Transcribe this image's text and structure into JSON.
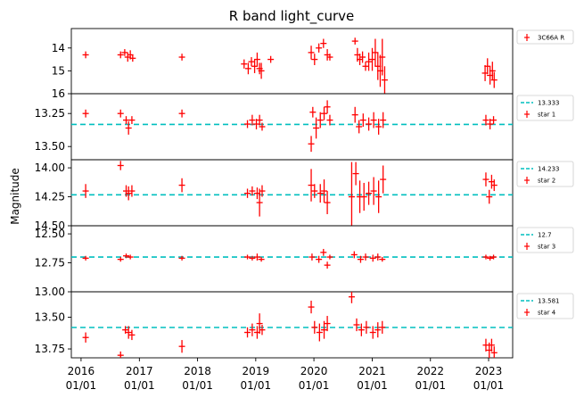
{
  "chart_data": {
    "type": "scatter",
    "title": "R band light_curve",
    "ylabel": "Magnitude",
    "xlabel": "",
    "y_inverted": true,
    "marker": "+ with error bars",
    "series_color": "#ff0000",
    "reference_color": "#00bfbf",
    "x_range": [
      "2015-11-01",
      "2023-06-01"
    ],
    "x_ticks": [
      {
        "x": "2016-01-01",
        "label_year": "2016",
        "label_day": "01/01"
      },
      {
        "x": "2017-01-01",
        "label_year": "2017",
        "label_day": "01/01"
      },
      {
        "x": "2018-01-01",
        "label_year": "2018",
        "label_day": "01/01"
      },
      {
        "x": "2019-01-01",
        "label_year": "2019",
        "label_day": "01/01"
      },
      {
        "x": "2020-01-01",
        "label_year": "2020",
        "label_day": "01/01"
      },
      {
        "x": "2021-01-01",
        "label_year": "2021",
        "label_day": "01/01"
      },
      {
        "x": "2022-01-01",
        "label_year": "2022",
        "label_day": "01/01"
      },
      {
        "x": "2023-01-01",
        "label_year": "2023",
        "label_day": "01/01"
      }
    ],
    "panels": [
      {
        "name": "3C66A R",
        "legend_series": "3C66A R",
        "reference": null,
        "reference_label": "",
        "ylim": [
          13.15,
          16.0
        ],
        "yticks": [
          14,
          15,
          16
        ],
        "yticklabels": [
          "14",
          "15",
          "16"
        ],
        "points": [
          {
            "x": "2016-01-30",
            "y": 14.3,
            "err": 0.15
          },
          {
            "x": "2016-09-05",
            "y": 14.3,
            "err": 0.15
          },
          {
            "x": "2016-10-01",
            "y": 14.2,
            "err": 0.15
          },
          {
            "x": "2016-10-20",
            "y": 14.4,
            "err": 0.2
          },
          {
            "x": "2016-11-05",
            "y": 14.3,
            "err": 0.2
          },
          {
            "x": "2016-11-20",
            "y": 14.45,
            "err": 0.15
          },
          {
            "x": "2017-09-25",
            "y": 14.4,
            "err": 0.15
          },
          {
            "x": "2018-10-20",
            "y": 14.7,
            "err": 0.2
          },
          {
            "x": "2018-11-15",
            "y": 14.9,
            "err": 0.25
          },
          {
            "x": "2018-12-05",
            "y": 14.6,
            "err": 0.2
          },
          {
            "x": "2018-12-25",
            "y": 14.8,
            "err": 0.3
          },
          {
            "x": "2019-01-10",
            "y": 14.5,
            "err": 0.3
          },
          {
            "x": "2019-01-25",
            "y": 14.9,
            "err": 0.25
          },
          {
            "x": "2019-02-05",
            "y": 15.0,
            "err": 0.35
          },
          {
            "x": "2019-04-05",
            "y": 14.5,
            "err": 0.15
          },
          {
            "x": "2019-12-15",
            "y": 14.2,
            "err": 0.3
          },
          {
            "x": "2020-01-05",
            "y": 14.5,
            "err": 0.25
          },
          {
            "x": "2020-02-01",
            "y": 14.0,
            "err": 0.2
          },
          {
            "x": "2020-03-01",
            "y": 13.8,
            "err": 0.2
          },
          {
            "x": "2020-03-25",
            "y": 14.3,
            "err": 0.25
          },
          {
            "x": "2020-04-10",
            "y": 14.4,
            "err": 0.15
          },
          {
            "x": "2020-09-15",
            "y": 13.7,
            "err": 0.15
          },
          {
            "x": "2020-09-30",
            "y": 14.3,
            "err": 0.3
          },
          {
            "x": "2020-10-15",
            "y": 14.5,
            "err": 0.25
          },
          {
            "x": "2020-11-01",
            "y": 14.4,
            "err": 0.25
          },
          {
            "x": "2020-11-20",
            "y": 14.8,
            "err": 0.2
          },
          {
            "x": "2020-12-10",
            "y": 14.6,
            "err": 0.4
          },
          {
            "x": "2021-01-01",
            "y": 14.5,
            "err": 0.5
          },
          {
            "x": "2021-01-20",
            "y": 14.2,
            "err": 0.6
          },
          {
            "x": "2021-02-05",
            "y": 14.8,
            "err": 0.6
          },
          {
            "x": "2021-02-20",
            "y": 15.0,
            "err": 0.7
          },
          {
            "x": "2021-03-05",
            "y": 14.4,
            "err": 0.8
          },
          {
            "x": "2021-03-20",
            "y": 15.4,
            "err": 0.6
          },
          {
            "x": "2022-12-10",
            "y": 15.1,
            "err": 0.35
          },
          {
            "x": "2022-12-25",
            "y": 14.8,
            "err": 0.35
          },
          {
            "x": "2023-01-10",
            "y": 15.2,
            "err": 0.4
          },
          {
            "x": "2023-01-25",
            "y": 15.0,
            "err": 0.4
          },
          {
            "x": "2023-02-05",
            "y": 15.4,
            "err": 0.35
          }
        ]
      },
      {
        "name": "star 1",
        "legend_series": "star 1",
        "reference": 13.333,
        "reference_label": "13.333",
        "ylim": [
          13.1,
          13.6
        ],
        "yticks": [
          13.25,
          13.5
        ],
        "yticklabels": [
          "13.25",
          "13.50"
        ],
        "points": [
          {
            "x": "2016-01-30",
            "y": 13.25,
            "err": 0.03
          },
          {
            "x": "2016-09-05",
            "y": 13.25,
            "err": 0.03
          },
          {
            "x": "2016-10-10",
            "y": 13.3,
            "err": 0.03
          },
          {
            "x": "2016-10-25",
            "y": 13.36,
            "err": 0.05
          },
          {
            "x": "2016-11-15",
            "y": 13.3,
            "err": 0.03
          },
          {
            "x": "2017-09-25",
            "y": 13.25,
            "err": 0.03
          },
          {
            "x": "2018-11-10",
            "y": 13.33,
            "err": 0.03
          },
          {
            "x": "2018-12-10",
            "y": 13.3,
            "err": 0.04
          },
          {
            "x": "2019-01-05",
            "y": 13.33,
            "err": 0.04
          },
          {
            "x": "2019-01-25",
            "y": 13.3,
            "err": 0.04
          },
          {
            "x": "2019-02-10",
            "y": 13.35,
            "err": 0.03
          },
          {
            "x": "2019-12-15",
            "y": 13.48,
            "err": 0.06
          },
          {
            "x": "2019-12-25",
            "y": 13.24,
            "err": 0.04
          },
          {
            "x": "2020-01-15",
            "y": 13.36,
            "err": 0.08
          },
          {
            "x": "2020-02-10",
            "y": 13.3,
            "err": 0.06
          },
          {
            "x": "2020-03-05",
            "y": 13.25,
            "err": 0.05
          },
          {
            "x": "2020-03-25",
            "y": 13.2,
            "err": 0.05
          },
          {
            "x": "2020-04-10",
            "y": 13.3,
            "err": 0.04
          },
          {
            "x": "2020-09-15",
            "y": 13.26,
            "err": 0.06
          },
          {
            "x": "2020-10-10",
            "y": 13.35,
            "err": 0.05
          },
          {
            "x": "2020-11-05",
            "y": 13.3,
            "err": 0.05
          },
          {
            "x": "2020-12-10",
            "y": 13.33,
            "err": 0.05
          },
          {
            "x": "2021-01-10",
            "y": 13.3,
            "err": 0.06
          },
          {
            "x": "2021-02-10",
            "y": 13.35,
            "err": 0.06
          },
          {
            "x": "2021-03-10",
            "y": 13.3,
            "err": 0.06
          },
          {
            "x": "2022-12-15",
            "y": 13.3,
            "err": 0.04
          },
          {
            "x": "2023-01-10",
            "y": 13.33,
            "err": 0.04
          },
          {
            "x": "2023-02-01",
            "y": 13.3,
            "err": 0.03
          }
        ]
      },
      {
        "name": "star 2",
        "legend_series": "star 2",
        "reference": 14.233,
        "reference_label": "14.233",
        "ylim": [
          13.93,
          14.5
        ],
        "yticks": [
          14.0,
          14.25,
          14.5
        ],
        "yticklabels": [
          "14.00",
          "14.25",
          "14.50"
        ],
        "points": [
          {
            "x": "2016-01-30",
            "y": 14.2,
            "err": 0.06
          },
          {
            "x": "2016-09-05",
            "y": 13.98,
            "err": 0.04
          },
          {
            "x": "2016-10-10",
            "y": 14.2,
            "err": 0.05
          },
          {
            "x": "2016-10-25",
            "y": 14.22,
            "err": 0.06
          },
          {
            "x": "2016-11-15",
            "y": 14.2,
            "err": 0.05
          },
          {
            "x": "2017-09-25",
            "y": 14.15,
            "err": 0.06
          },
          {
            "x": "2018-11-10",
            "y": 14.22,
            "err": 0.04
          },
          {
            "x": "2018-12-10",
            "y": 14.2,
            "err": 0.04
          },
          {
            "x": "2019-01-10",
            "y": 14.22,
            "err": 0.05
          },
          {
            "x": "2019-01-25",
            "y": 14.3,
            "err": 0.12
          },
          {
            "x": "2019-02-10",
            "y": 14.2,
            "err": 0.05
          },
          {
            "x": "2019-12-15",
            "y": 14.15,
            "err": 0.14
          },
          {
            "x": "2020-01-05",
            "y": 14.2,
            "err": 0.06
          },
          {
            "x": "2020-02-10",
            "y": 14.22,
            "err": 0.08
          },
          {
            "x": "2020-03-05",
            "y": 14.2,
            "err": 0.1
          },
          {
            "x": "2020-03-25",
            "y": 14.3,
            "err": 0.1
          },
          {
            "x": "2020-08-25",
            "y": 14.25,
            "err": 0.3
          },
          {
            "x": "2020-09-20",
            "y": 14.05,
            "err": 0.1
          },
          {
            "x": "2020-10-15",
            "y": 14.25,
            "err": 0.14
          },
          {
            "x": "2020-11-10",
            "y": 14.25,
            "err": 0.12
          },
          {
            "x": "2020-12-10",
            "y": 14.22,
            "err": 0.1
          },
          {
            "x": "2021-01-10",
            "y": 14.2,
            "err": 0.12
          },
          {
            "x": "2021-02-10",
            "y": 14.25,
            "err": 0.14
          },
          {
            "x": "2021-03-10",
            "y": 14.1,
            "err": 0.12
          },
          {
            "x": "2022-12-15",
            "y": 14.1,
            "err": 0.06
          },
          {
            "x": "2023-01-05",
            "y": 14.25,
            "err": 0.06
          },
          {
            "x": "2023-01-20",
            "y": 14.12,
            "err": 0.06
          },
          {
            "x": "2023-02-05",
            "y": 14.15,
            "err": 0.05
          }
        ]
      },
      {
        "name": "star 3",
        "legend_series": "star 3",
        "reference": 12.7,
        "reference_label": "12.7",
        "ylim": [
          12.43,
          13.0
        ],
        "yticks": [
          12.5,
          12.75,
          13.0
        ],
        "yticklabels": [
          "12.50",
          "12.75",
          "13.00"
        ],
        "points": [
          {
            "x": "2016-01-30",
            "y": 12.71,
            "err": 0.02
          },
          {
            "x": "2016-09-05",
            "y": 12.72,
            "err": 0.02
          },
          {
            "x": "2016-10-10",
            "y": 12.69,
            "err": 0.02
          },
          {
            "x": "2016-11-05",
            "y": 12.7,
            "err": 0.02
          },
          {
            "x": "2017-09-25",
            "y": 12.71,
            "err": 0.02
          },
          {
            "x": "2018-11-10",
            "y": 12.7,
            "err": 0.02
          },
          {
            "x": "2018-12-10",
            "y": 12.71,
            "err": 0.02
          },
          {
            "x": "2019-01-10",
            "y": 12.7,
            "err": 0.03
          },
          {
            "x": "2019-02-05",
            "y": 12.72,
            "err": 0.02
          },
          {
            "x": "2019-12-20",
            "y": 12.7,
            "err": 0.03
          },
          {
            "x": "2020-02-01",
            "y": 12.72,
            "err": 0.03
          },
          {
            "x": "2020-03-01",
            "y": 12.66,
            "err": 0.03
          },
          {
            "x": "2020-03-25",
            "y": 12.77,
            "err": 0.03
          },
          {
            "x": "2020-04-10",
            "y": 12.7,
            "err": 0.02
          },
          {
            "x": "2020-09-10",
            "y": 12.68,
            "err": 0.03
          },
          {
            "x": "2020-10-20",
            "y": 12.72,
            "err": 0.03
          },
          {
            "x": "2020-11-20",
            "y": 12.7,
            "err": 0.03
          },
          {
            "x": "2021-01-05",
            "y": 12.71,
            "err": 0.03
          },
          {
            "x": "2021-02-05",
            "y": 12.7,
            "err": 0.03
          },
          {
            "x": "2021-03-05",
            "y": 12.72,
            "err": 0.02
          },
          {
            "x": "2022-12-15",
            "y": 12.7,
            "err": 0.02
          },
          {
            "x": "2023-01-10",
            "y": 12.71,
            "err": 0.02
          },
          {
            "x": "2023-02-01",
            "y": 12.7,
            "err": 0.02
          }
        ]
      },
      {
        "name": "star 4",
        "legend_series": "star 4",
        "reference": 13.581,
        "reference_label": "13.581",
        "ylim": [
          13.3,
          13.82
        ],
        "yticks": [
          13.5,
          13.75
        ],
        "yticklabels": [
          "13.50",
          "13.75"
        ],
        "points": [
          {
            "x": "2016-01-30",
            "y": 13.66,
            "err": 0.04
          },
          {
            "x": "2016-09-05",
            "y": 13.8,
            "err": 0.03
          },
          {
            "x": "2016-10-05",
            "y": 13.6,
            "err": 0.03
          },
          {
            "x": "2016-10-25",
            "y": 13.62,
            "err": 0.05
          },
          {
            "x": "2016-11-15",
            "y": 13.64,
            "err": 0.04
          },
          {
            "x": "2017-09-25",
            "y": 13.73,
            "err": 0.05
          },
          {
            "x": "2018-11-10",
            "y": 13.62,
            "err": 0.04
          },
          {
            "x": "2018-12-10",
            "y": 13.6,
            "err": 0.05
          },
          {
            "x": "2019-01-10",
            "y": 13.62,
            "err": 0.05
          },
          {
            "x": "2019-01-25",
            "y": 13.55,
            "err": 0.08
          },
          {
            "x": "2019-02-10",
            "y": 13.6,
            "err": 0.04
          },
          {
            "x": "2019-12-15",
            "y": 13.42,
            "err": 0.05
          },
          {
            "x": "2020-01-05",
            "y": 13.58,
            "err": 0.05
          },
          {
            "x": "2020-02-05",
            "y": 13.62,
            "err": 0.07
          },
          {
            "x": "2020-03-05",
            "y": 13.6,
            "err": 0.07
          },
          {
            "x": "2020-03-25",
            "y": 13.55,
            "err": 0.06
          },
          {
            "x": "2020-08-25",
            "y": 13.34,
            "err": 0.05
          },
          {
            "x": "2020-09-25",
            "y": 13.56,
            "err": 0.05
          },
          {
            "x": "2020-10-25",
            "y": 13.6,
            "err": 0.05
          },
          {
            "x": "2020-11-25",
            "y": 13.58,
            "err": 0.05
          },
          {
            "x": "2021-01-05",
            "y": 13.62,
            "err": 0.05
          },
          {
            "x": "2021-02-05",
            "y": 13.6,
            "err": 0.06
          },
          {
            "x": "2021-03-05",
            "y": 13.58,
            "err": 0.05
          },
          {
            "x": "2022-12-15",
            "y": 13.72,
            "err": 0.05
          },
          {
            "x": "2023-01-05",
            "y": 13.76,
            "err": 0.06
          },
          {
            "x": "2023-01-20",
            "y": 13.72,
            "err": 0.05
          },
          {
            "x": "2023-02-05",
            "y": 13.78,
            "err": 0.05
          }
        ]
      }
    ]
  }
}
